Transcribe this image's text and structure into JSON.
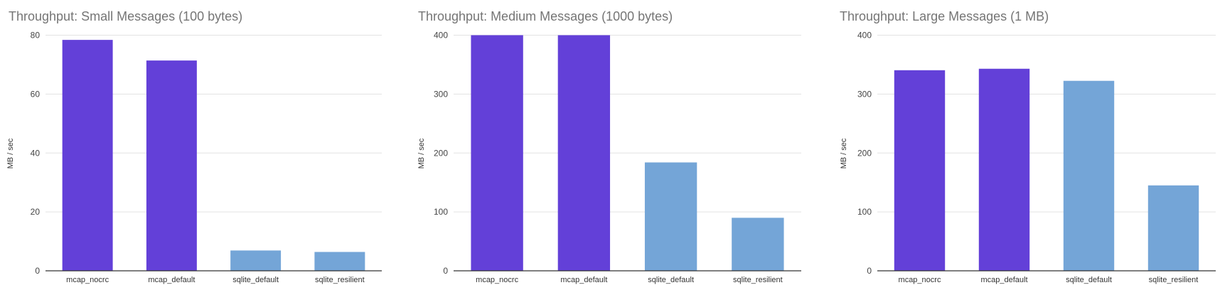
{
  "colors": {
    "mcap": "#6340D8",
    "sqlite": "#74A5D7",
    "grid": "#E3E3E3",
    "axis": "#333333"
  },
  "chart_data": [
    {
      "type": "bar",
      "title": "Throughput: Small Messages (100 bytes)",
      "xlabel": "",
      "ylabel": "MB / sec",
      "ylim": [
        0,
        80
      ],
      "yticks": [
        0,
        20,
        40,
        60,
        80
      ],
      "grid": true,
      "categories": [
        "mcap_nocrc",
        "mcap_default",
        "sqlite_default",
        "sqlite_resilient"
      ],
      "values": [
        78.4,
        71.4,
        6.9,
        6.4
      ]
    },
    {
      "type": "bar",
      "title": "Throughput: Medium Messages (1000 bytes)",
      "xlabel": "",
      "ylabel": "MB / sec",
      "ylim": [
        0,
        400
      ],
      "yticks": [
        0,
        100,
        200,
        300,
        400
      ],
      "grid": true,
      "categories": [
        "mcap_nocrc",
        "mcap_default",
        "sqlite_default",
        "sqlite_resilient"
      ],
      "values": [
        400,
        400,
        184,
        90
      ]
    },
    {
      "type": "bar",
      "title": "Throughput: Large Messages (1 MB)",
      "xlabel": "",
      "ylabel": "MB / sec",
      "ylim": [
        0,
        400
      ],
      "yticks": [
        0,
        100,
        200,
        300,
        400
      ],
      "grid": true,
      "categories": [
        "mcap_nocrc",
        "mcap_default",
        "sqlite_default",
        "sqlite_resilient"
      ],
      "values": [
        340.5,
        343,
        322.5,
        145
      ]
    }
  ]
}
